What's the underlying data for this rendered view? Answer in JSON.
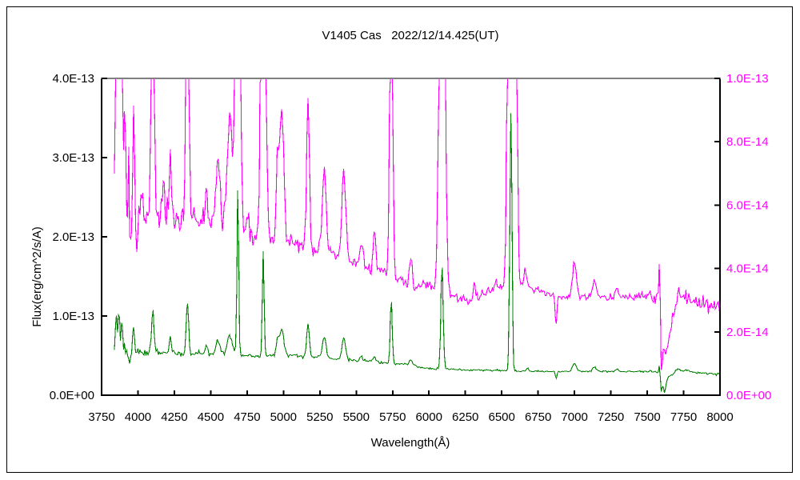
{
  "title": "V1405 Cas   2022/12/14.425(UT)",
  "axes": {
    "x": {
      "label": "Wavelength(Å)",
      "min": 3750,
      "max": 8000,
      "tick_step": 250,
      "tick_labels": [
        "3750",
        "4000",
        "4250",
        "4500",
        "4750",
        "5000",
        "5250",
        "5500",
        "5750",
        "6000",
        "6250",
        "6500",
        "6750",
        "7000",
        "7250",
        "7500",
        "7750",
        "8000"
      ]
    },
    "y_left": {
      "label": "Flux(erg/cm^2/s/A)",
      "min": 0,
      "max": 4e-13,
      "color": "#000000",
      "tick_labels": [
        "0.0E+00",
        "1.0E-13",
        "2.0E-13",
        "3.0E-13",
        "4.0E-13"
      ]
    },
    "y_right": {
      "min": 0,
      "max": 1e-13,
      "color": "#ff00ff",
      "tick_labels": [
        "0.0E+00",
        "2.0E-14",
        "4.0E-14",
        "6.0E-14",
        "8.0E-14",
        "1.0E-13"
      ]
    }
  },
  "chart_data": {
    "type": "line",
    "title": "V1405 Cas 2022/12/14.425(UT)",
    "xlabel": "Wavelength(Å)",
    "ylabel": "Flux(erg/cm^2/s/A)",
    "x_unit": "Angstrom",
    "x_range": [
      3838,
      8000
    ],
    "sample_step": 7,
    "left_axis_range": [
      0,
      4e-13
    ],
    "right_axis_range": [
      0,
      1e-13
    ],
    "grid": false,
    "legend": "none",
    "clipping_note": "magenta spectrum is read on the right axis; strong emission lines (3850-3890, 4101, 4340, 4640-4700, 4861, 5740, 6090, 6530-6615) exceed 1.0E-13 and are clipped at the plot top; telluric absorption at 6873 and deep O2 A-band crash at 7594-7640",
    "series_format": {
      "continuum": "[wavelength_A, flux]",
      "lines": "[center_A, peak_amplitude_above_continuum, sigma_A]",
      "noise": "[wavelength_A, sigma_flux]"
    },
    "series": [
      {
        "name": "spectrum-magenta-right-axis",
        "color": "#ff00ff",
        "axis": "right",
        "unit": "1e-14 erg/cm^2/s/A",
        "axis_max": 10,
        "seed": 11,
        "continuum": [
          [
            3838,
            6.0
          ],
          [
            3900,
            5.6
          ],
          [
            3950,
            4.85
          ],
          [
            3990,
            5.2
          ],
          [
            4050,
            5.6
          ],
          [
            4150,
            5.7
          ],
          [
            4250,
            5.6
          ],
          [
            4400,
            5.6
          ],
          [
            4520,
            5.45
          ],
          [
            4620,
            5.3
          ],
          [
            4720,
            5.15
          ],
          [
            4800,
            5.0
          ],
          [
            4920,
            4.9
          ],
          [
            5050,
            4.8
          ],
          [
            5180,
            4.7
          ],
          [
            5300,
            4.55
          ],
          [
            5400,
            4.3
          ],
          [
            5500,
            4.15
          ],
          [
            5620,
            3.95
          ],
          [
            5700,
            3.85
          ],
          [
            5780,
            3.7
          ],
          [
            5850,
            3.55
          ],
          [
            5892,
            3.35
          ],
          [
            5950,
            3.5
          ],
          [
            6050,
            3.4
          ],
          [
            6150,
            3.15
          ],
          [
            6280,
            2.95
          ],
          [
            6400,
            3.25
          ],
          [
            6500,
            3.4
          ],
          [
            6630,
            3.55
          ],
          [
            6720,
            3.35
          ],
          [
            6850,
            3.15
          ],
          [
            6950,
            3.1
          ],
          [
            7100,
            3.1
          ],
          [
            7250,
            3.1
          ],
          [
            7400,
            3.1
          ],
          [
            7560,
            3.1
          ],
          [
            7585,
            3.2
          ],
          [
            7598,
            0.7
          ],
          [
            7608,
            1.5
          ],
          [
            7622,
            1.2
          ],
          [
            7645,
            1.7
          ],
          [
            7680,
            2.5
          ],
          [
            7715,
            3.35
          ],
          [
            7760,
            3.1
          ],
          [
            7850,
            2.95
          ],
          [
            8000,
            2.6
          ]
        ],
        "lines": [
          [
            3852,
            12,
            6
          ],
          [
            3869,
            14,
            6
          ],
          [
            3889,
            12,
            6
          ],
          [
            3912,
            4,
            5
          ],
          [
            3935,
            2.5,
            4
          ],
          [
            3970,
            3.6,
            7
          ],
          [
            4026,
            1.0,
            7
          ],
          [
            4101,
            12,
            9
          ],
          [
            4173,
            1.1,
            8
          ],
          [
            4223,
            1.8,
            8
          ],
          [
            4340,
            12,
            9
          ],
          [
            4471,
            1.2,
            9
          ],
          [
            4550,
            2.1,
            14
          ],
          [
            4630,
            3.6,
            18
          ],
          [
            4686,
            20,
            13
          ],
          [
            4755,
            0.8,
            9
          ],
          [
            4861,
            20,
            13
          ],
          [
            4959,
            2.5,
            9
          ],
          [
            4988,
            4.2,
            14
          ],
          [
            5169,
            4.8,
            9
          ],
          [
            5280,
            2.7,
            12
          ],
          [
            5415,
            2.9,
            12
          ],
          [
            5535,
            0.8,
            10
          ],
          [
            5625,
            1.2,
            10
          ],
          [
            5740,
            14,
            9
          ],
          [
            5876,
            0.8,
            9
          ],
          [
            6090,
            20,
            16
          ],
          [
            6312,
            0.5,
            6
          ],
          [
            6460,
            0.3,
            9
          ],
          [
            6548,
            10,
            10
          ],
          [
            6570,
            25,
            16
          ],
          [
            6600,
            8,
            8
          ],
          [
            6663,
            0.5,
            7
          ],
          [
            6873,
            -1.15,
            5
          ],
          [
            7000,
            1.1,
            13
          ],
          [
            7136,
            0.5,
            12
          ],
          [
            7290,
            0.3,
            10
          ],
          [
            7585,
            1.3,
            4
          ]
        ],
        "noise": [
          [
            3838,
            0.5
          ],
          [
            3950,
            0.42
          ],
          [
            4100,
            0.3
          ],
          [
            4400,
            0.2
          ],
          [
            4800,
            0.15
          ],
          [
            5300,
            0.12
          ],
          [
            5800,
            0.09
          ],
          [
            6300,
            0.07
          ],
          [
            6900,
            0.05
          ],
          [
            7400,
            0.05
          ],
          [
            7600,
            0.15
          ],
          [
            7700,
            0.12
          ],
          [
            8000,
            0.16
          ]
        ]
      },
      {
        "name": "spectrum-green-left-axis",
        "color": "#008000",
        "axis": "left",
        "unit": "1e-13 erg/cm^2/s/A",
        "axis_max": 4,
        "seed": 23,
        "continuum": [
          [
            3838,
            0.62
          ],
          [
            3900,
            0.58
          ],
          [
            3950,
            0.46
          ],
          [
            3990,
            0.52
          ],
          [
            4050,
            0.555
          ],
          [
            4150,
            0.545
          ],
          [
            4250,
            0.525
          ],
          [
            4400,
            0.53
          ],
          [
            4520,
            0.52
          ],
          [
            4620,
            0.52
          ],
          [
            4700,
            0.51
          ],
          [
            4760,
            0.5
          ],
          [
            4830,
            0.49
          ],
          [
            4920,
            0.5
          ],
          [
            5050,
            0.5
          ],
          [
            5180,
            0.485
          ],
          [
            5300,
            0.47
          ],
          [
            5400,
            0.455
          ],
          [
            5500,
            0.44
          ],
          [
            5620,
            0.42
          ],
          [
            5750,
            0.4
          ],
          [
            5850,
            0.39
          ],
          [
            5950,
            0.35
          ],
          [
            6050,
            0.335
          ],
          [
            6200,
            0.325
          ],
          [
            6400,
            0.315
          ],
          [
            6550,
            0.31
          ],
          [
            6700,
            0.305
          ],
          [
            6850,
            0.3
          ],
          [
            7000,
            0.3
          ],
          [
            7200,
            0.3
          ],
          [
            7400,
            0.3
          ],
          [
            7560,
            0.3
          ],
          [
            7585,
            0.29
          ],
          [
            7597,
            0.04
          ],
          [
            7606,
            0.12
          ],
          [
            7618,
            0.05
          ],
          [
            7645,
            0.22
          ],
          [
            7680,
            0.28
          ],
          [
            7715,
            0.33
          ],
          [
            7750,
            0.31
          ],
          [
            7850,
            0.29
          ],
          [
            8000,
            0.26
          ]
        ],
        "lines": [
          [
            3850,
            0.45,
            5
          ],
          [
            3869,
            0.5,
            5
          ],
          [
            3889,
            0.3,
            5
          ],
          [
            3970,
            0.4,
            7
          ],
          [
            4101,
            0.53,
            8
          ],
          [
            4223,
            0.2,
            8
          ],
          [
            4340,
            0.67,
            8
          ],
          [
            4471,
            0.1,
            8
          ],
          [
            4550,
            0.16,
            13
          ],
          [
            4630,
            0.25,
            16
          ],
          [
            4686,
            2.1,
            6
          ],
          [
            4861,
            1.36,
            6
          ],
          [
            4959,
            0.2,
            9
          ],
          [
            4988,
            0.33,
            14
          ],
          [
            5169,
            0.43,
            9
          ],
          [
            5280,
            0.26,
            12
          ],
          [
            5415,
            0.27,
            12
          ],
          [
            5535,
            0.05,
            10
          ],
          [
            5625,
            0.06,
            10
          ],
          [
            5740,
            0.8,
            7
          ],
          [
            5876,
            0.06,
            10
          ],
          [
            6090,
            1.31,
            8
          ],
          [
            6563,
            3.39,
            7
          ],
          [
            6678,
            0.04,
            8
          ],
          [
            6873,
            -0.1,
            5
          ],
          [
            7000,
            0.1,
            13
          ],
          [
            7136,
            0.06,
            12
          ],
          [
            7290,
            0.03,
            10
          ],
          [
            7585,
            0.09,
            4
          ]
        ],
        "noise": [
          [
            3838,
            0.05
          ],
          [
            3950,
            0.042
          ],
          [
            4100,
            0.028
          ],
          [
            4400,
            0.018
          ],
          [
            4800,
            0.012
          ],
          [
            5300,
            0.01
          ],
          [
            5800,
            0.008
          ],
          [
            6300,
            0.006
          ],
          [
            6900,
            0.005
          ],
          [
            7400,
            0.005
          ],
          [
            7600,
            0.01
          ],
          [
            8000,
            0.009
          ]
        ]
      }
    ]
  },
  "colors": {
    "background": "#ffffff",
    "frame": "#000000",
    "frame_top": "#808080",
    "magenta_series": "#ff00ff",
    "green_series": "#008000"
  }
}
